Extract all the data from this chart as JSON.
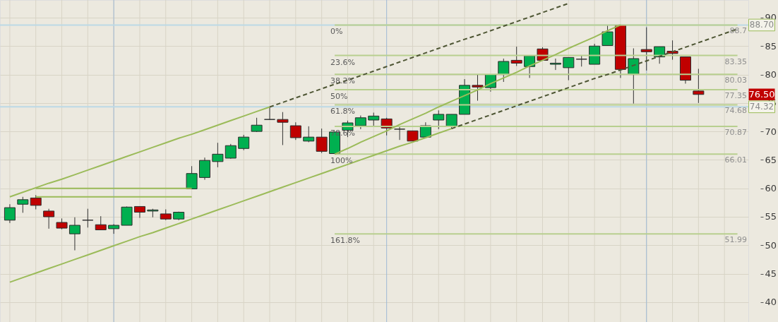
{
  "chart_data": {
    "type": "candlestick",
    "categories": [
      null,
      null,
      null,
      null,
      null,
      null,
      null,
      null,
      null,
      null,
      null,
      null,
      null,
      null,
      null,
      null,
      null,
      null,
      null,
      null,
      null,
      null,
      null,
      null,
      null,
      null,
      null,
      null,
      null,
      null,
      null,
      null,
      null,
      null,
      null,
      null,
      null,
      null,
      null,
      null,
      null,
      null,
      null,
      null,
      null,
      null,
      null,
      null,
      null,
      null,
      null,
      null,
      null,
      null,
      null,
      null,
      null
    ],
    "ohlc": [
      [
        54.4,
        57.2,
        53.9,
        56.6
      ],
      [
        57.2,
        58.5,
        55.7,
        58.0
      ],
      [
        58.3,
        58.8,
        56.3,
        57.0
      ],
      [
        56.0,
        56.4,
        52.9,
        55.0
      ],
      [
        54.0,
        54.7,
        52.8,
        53.0
      ],
      [
        52.0,
        54.9,
        49.1,
        53.5
      ],
      [
        54.4,
        56.4,
        53.1,
        54.4
      ],
      [
        53.6,
        55.1,
        52.7,
        52.7
      ],
      [
        52.9,
        53.7,
        52.0,
        53.5
      ],
      [
        53.5,
        56.8,
        53.5,
        56.7
      ],
      [
        56.8,
        56.8,
        54.8,
        55.8
      ],
      [
        56.0,
        56.4,
        54.9,
        56.2
      ],
      [
        55.5,
        56.3,
        54.4,
        54.6
      ],
      [
        54.6,
        55.9,
        54.4,
        55.8
      ],
      [
        59.9,
        63.9,
        59.9,
        62.6
      ],
      [
        61.9,
        65.4,
        61.5,
        64.9
      ],
      [
        64.7,
        68.0,
        63.7,
        66.0
      ],
      [
        65.3,
        67.8,
        65.2,
        67.5
      ],
      [
        67.0,
        69.4,
        66.7,
        69.0
      ],
      [
        70.0,
        72.4,
        69.9,
        71.1
      ],
      [
        72.1,
        74.3,
        72.1,
        72.1
      ],
      [
        72.1,
        73.4,
        67.6,
        71.6
      ],
      [
        71.0,
        71.6,
        68.5,
        68.9
      ],
      [
        68.3,
        70.9,
        68.1,
        69.0
      ],
      [
        69.0,
        70.5,
        66.2,
        66.5
      ],
      [
        66.1,
        69.9,
        66.1,
        69.9
      ],
      [
        70.2,
        71.9,
        69.0,
        71.5
      ],
      [
        71.0,
        72.8,
        70.4,
        72.4
      ],
      [
        72.0,
        73.3,
        71.0,
        72.7
      ],
      [
        72.2,
        72.4,
        69.3,
        70.6
      ],
      [
        70.4,
        71.0,
        68.5,
        70.4
      ],
      [
        70.1,
        70.1,
        68.3,
        68.3
      ],
      [
        69.0,
        71.6,
        69.0,
        71.0
      ],
      [
        72.0,
        73.7,
        70.4,
        73.0
      ],
      [
        70.9,
        73.0,
        70.4,
        73.0
      ],
      [
        73.0,
        79.2,
        73.0,
        78.1
      ],
      [
        78.1,
        80.0,
        75.4,
        77.8
      ],
      [
        77.7,
        80.0,
        77.0,
        80.0
      ],
      [
        80.0,
        82.8,
        78.7,
        82.3
      ],
      [
        82.5,
        84.9,
        81.5,
        82.0
      ],
      [
        81.4,
        83.3,
        79.4,
        83.3
      ],
      [
        84.5,
        84.8,
        82.5,
        82.5
      ],
      [
        81.8,
        82.8,
        80.8,
        82.0
      ],
      [
        81.2,
        83.0,
        79.0,
        83.0
      ],
      [
        82.7,
        83.4,
        81.4,
        82.7
      ],
      [
        81.8,
        85.4,
        81.8,
        85.0
      ],
      [
        85.1,
        88.6,
        85.1,
        87.5
      ],
      [
        88.7,
        88.7,
        79.4,
        80.9
      ],
      [
        80.0,
        84.6,
        74.9,
        82.8
      ],
      [
        84.4,
        88.3,
        80.7,
        84.0
      ],
      [
        83.1,
        84.9,
        81.9,
        84.9
      ],
      [
        84.1,
        86.0,
        82.6,
        83.7
      ],
      [
        83.1,
        83.1,
        78.4,
        79.0
      ],
      [
        77.1,
        81.0,
        75.0,
        76.5
      ],
      null,
      null,
      null
    ],
    "colors": [
      "#00b050",
      "#00b050",
      "#c00000",
      "#c00000",
      "#c00000",
      "#00b050",
      "#333333",
      "#c00000",
      "#00b050",
      "#00b050",
      "#c00000",
      "#00b050",
      "#c00000",
      "#00b050",
      "#00b050",
      "#00b050",
      "#00b050",
      "#00b050",
      "#00b050",
      "#00b050",
      "#333333",
      "#c00000",
      "#c00000",
      "#00b050",
      "#c00000",
      "#00b050",
      "#00b050",
      "#00b050",
      "#00b050",
      "#c00000",
      "#333333",
      "#c00000",
      "#00b050",
      "#00b050",
      "#00b050",
      "#00b050",
      "#c00000",
      "#00b050",
      "#00b050",
      "#c00000",
      "#00b050",
      "#c00000",
      "#00b050",
      "#00b050",
      "#333333",
      "#00b050",
      "#00b050",
      "#c00000",
      "#00b050",
      "#c00000",
      "#00b050",
      "#c00000",
      "#c00000",
      "#c00000",
      null,
      null,
      null
    ],
    "series": [
      {
        "type": "line",
        "name": "0%",
        "color": "#b8cf8f",
        "values": [
          null,
          null,
          null,
          null,
          null,
          null,
          null,
          null,
          null,
          null,
          null,
          null,
          null,
          null,
          null,
          null,
          null,
          null,
          null,
          null,
          null,
          null,
          null,
          null,
          null,
          88.7,
          88.7,
          88.7,
          88.7,
          88.7,
          88.7,
          88.7,
          88.7,
          88.7,
          88.7,
          88.7,
          88.7,
          88.7,
          88.7,
          88.7,
          88.7,
          88.7,
          88.7,
          88.7,
          88.7,
          88.7,
          88.7,
          88.7,
          88.7,
          88.7,
          88.7,
          88.7,
          88.7,
          88.7,
          88.7,
          88.7,
          88.7
        ]
      },
      {
        "type": "line",
        "name": "23.6%",
        "color": "#b8cf8f",
        "values": [
          null,
          null,
          null,
          null,
          null,
          null,
          null,
          null,
          null,
          null,
          null,
          null,
          null,
          null,
          null,
          null,
          null,
          null,
          null,
          null,
          null,
          null,
          null,
          null,
          null,
          83.35,
          83.35,
          83.35,
          83.35,
          83.35,
          83.35,
          83.35,
          83.35,
          83.35,
          83.35,
          83.35,
          83.35,
          83.35,
          83.35,
          83.35,
          83.35,
          83.35,
          83.35,
          83.35,
          83.35,
          83.35,
          83.35,
          83.35,
          83.35,
          83.35,
          83.35,
          83.35,
          83.35,
          83.35,
          83.35,
          83.35,
          83.35
        ]
      },
      {
        "type": "line",
        "name": "38.2%",
        "color": "#b8cf8f",
        "values": [
          null,
          null,
          null,
          null,
          null,
          null,
          null,
          null,
          null,
          null,
          null,
          null,
          null,
          null,
          null,
          null,
          null,
          null,
          null,
          null,
          null,
          null,
          null,
          null,
          null,
          80.03,
          80.03,
          80.03,
          80.03,
          80.03,
          80.03,
          80.03,
          80.03,
          80.03,
          80.03,
          80.03,
          80.03,
          80.03,
          80.03,
          80.03,
          80.03,
          80.03,
          80.03,
          80.03,
          80.03,
          80.03,
          80.03,
          80.03,
          80.03,
          80.03,
          80.03,
          80.03,
          80.03,
          80.03,
          80.03,
          80.03,
          80.03
        ]
      },
      {
        "type": "line",
        "name": "50%",
        "color": "#b8cf8f",
        "values": [
          null,
          null,
          null,
          null,
          null,
          null,
          null,
          null,
          null,
          null,
          null,
          null,
          null,
          null,
          null,
          null,
          null,
          null,
          null,
          null,
          null,
          null,
          null,
          null,
          null,
          77.35,
          77.35,
          77.35,
          77.35,
          77.35,
          77.35,
          77.35,
          77.35,
          77.35,
          77.35,
          77.35,
          77.35,
          77.35,
          77.35,
          77.35,
          77.35,
          77.35,
          77.35,
          77.35,
          77.35,
          77.35,
          77.35,
          77.35,
          77.35,
          77.35,
          77.35,
          77.35,
          77.35,
          77.35,
          77.35,
          77.35,
          77.35
        ]
      },
      {
        "type": "line",
        "name": "61.8%",
        "color": "#b8cf8f",
        "values": [
          null,
          null,
          null,
          null,
          null,
          null,
          null,
          null,
          null,
          null,
          null,
          null,
          null,
          null,
          null,
          null,
          null,
          null,
          null,
          null,
          null,
          null,
          null,
          null,
          null,
          74.68,
          74.68,
          74.68,
          74.68,
          74.68,
          74.68,
          74.68,
          74.68,
          74.68,
          74.68,
          74.68,
          74.68,
          74.68,
          74.68,
          74.68,
          74.68,
          74.68,
          74.68,
          74.68,
          74.68,
          74.68,
          74.68,
          74.68,
          74.68,
          74.68,
          74.68,
          74.68,
          74.68,
          74.68,
          74.68,
          74.68,
          74.68
        ]
      },
      {
        "type": "line",
        "name": "78.6%",
        "color": "#b8cf8f",
        "values": [
          null,
          null,
          null,
          null,
          null,
          null,
          null,
          null,
          null,
          null,
          null,
          null,
          null,
          null,
          null,
          null,
          null,
          null,
          null,
          null,
          null,
          null,
          null,
          null,
          null,
          70.87,
          70.87,
          70.87,
          70.87,
          70.87,
          70.87,
          70.87,
          70.87,
          70.87,
          70.87,
          70.87,
          70.87,
          70.87,
          70.87,
          70.87,
          70.87,
          70.87,
          70.87,
          70.87,
          70.87,
          70.87,
          70.87,
          70.87,
          70.87,
          70.87,
          70.87,
          70.87,
          70.87,
          70.87,
          70.87,
          70.87,
          70.87
        ]
      },
      {
        "type": "line",
        "name": "100%",
        "color": "#b8cf8f",
        "values": [
          null,
          null,
          null,
          null,
          null,
          null,
          null,
          null,
          null,
          null,
          null,
          null,
          null,
          null,
          null,
          null,
          null,
          null,
          null,
          null,
          null,
          null,
          null,
          null,
          null,
          66.01,
          66.01,
          66.01,
          66.01,
          66.01,
          66.01,
          66.01,
          66.01,
          66.01,
          66.01,
          66.01,
          66.01,
          66.01,
          66.01,
          66.01,
          66.01,
          66.01,
          66.01,
          66.01,
          66.01,
          66.01,
          66.01,
          66.01,
          66.01,
          66.01,
          66.01,
          66.01,
          66.01,
          66.01,
          66.01,
          66.01,
          66.01
        ]
      },
      {
        "type": "line",
        "name": "161.8%",
        "color": "#b8cf8f",
        "values": [
          null,
          null,
          null,
          null,
          null,
          null,
          null,
          null,
          null,
          null,
          null,
          null,
          null,
          null,
          null,
          null,
          null,
          null,
          null,
          null,
          null,
          null,
          null,
          null,
          null,
          51.99,
          51.99,
          51.99,
          51.99,
          51.99,
          51.99,
          51.99,
          51.99,
          51.99,
          51.99,
          51.99,
          51.99,
          51.99,
          51.99,
          51.99,
          51.99,
          51.99,
          51.99,
          51.99,
          51.99,
          51.99,
          51.99,
          51.99,
          51.99,
          51.99,
          51.99,
          51.99,
          51.99,
          51.99,
          51.99,
          51.99,
          51.99
        ]
      },
      {
        "type": "line",
        "color": "#9bbb59",
        "values": [
          58.5,
          59.3,
          60.1,
          60.9,
          61.6,
          62.4,
          63.2,
          64.0,
          64.8,
          65.6,
          66.4,
          67.2,
          68.0,
          68.8,
          69.5,
          70.3,
          71.1,
          71.9,
          72.7,
          73.5,
          74.3,
          null,
          null,
          null,
          null,
          null,
          null,
          null,
          null,
          null,
          null,
          null,
          null,
          null,
          null,
          null,
          null,
          null,
          null,
          null,
          null,
          null,
          null,
          null,
          null,
          null,
          null,
          null,
          null,
          null,
          null,
          null,
          null,
          null,
          null,
          null,
          null
        ]
      },
      {
        "type": "line",
        "color": "#4e5634",
        "line_style": "dashed",
        "values": [
          null,
          null,
          null,
          null,
          null,
          null,
          null,
          null,
          null,
          null,
          null,
          null,
          null,
          null,
          null,
          null,
          null,
          null,
          null,
          null,
          74.3,
          75.1,
          75.9,
          76.7,
          77.5,
          78.3,
          79.0,
          79.8,
          80.6,
          81.4,
          82.2,
          83.0,
          83.8,
          84.6,
          85.4,
          86.2,
          86.9,
          87.7,
          88.5,
          89.3,
          90.1,
          90.9,
          91.7,
          92.5,
          null,
          null,
          null,
          null,
          null,
          null,
          null,
          null,
          null,
          null,
          null,
          null,
          null
        ]
      },
      {
        "type": "line",
        "color": "#9bbb59",
        "values": [
          43.5,
          44.3,
          45.1,
          45.9,
          46.7,
          47.5,
          48.3,
          49.1,
          49.9,
          50.7,
          51.5,
          52.2,
          53.0,
          53.8,
          54.6,
          55.4,
          56.2,
          57.0,
          57.8,
          58.6,
          59.4,
          60.2,
          61.0,
          61.8,
          62.6,
          63.4,
          64.2,
          65.0,
          65.8,
          66.6,
          67.4,
          68.1,
          68.9,
          69.7,
          70.5,
          null,
          null,
          null,
          null,
          null,
          null,
          null,
          null,
          null,
          null,
          null,
          null,
          null,
          null,
          null,
          null,
          null,
          null,
          null,
          null,
          null,
          null
        ]
      },
      {
        "type": "line",
        "color": "#4e5634",
        "line_style": "dashed",
        "values": [
          null,
          null,
          null,
          null,
          null,
          null,
          null,
          null,
          null,
          null,
          null,
          null,
          null,
          null,
          null,
          null,
          null,
          null,
          null,
          null,
          null,
          null,
          null,
          null,
          null,
          null,
          null,
          null,
          null,
          null,
          null,
          null,
          null,
          null,
          70.5,
          71.3,
          72.1,
          72.9,
          73.7,
          74.5,
          75.3,
          76.1,
          76.9,
          77.7,
          78.5,
          79.3,
          80.0,
          80.8,
          81.6,
          82.4,
          83.2,
          84.0,
          84.8,
          85.6,
          86.4,
          87.2,
          88.0
        ]
      },
      {
        "type": "line",
        "color": "#9bbb59",
        "values": [
          null,
          null,
          null,
          null,
          null,
          null,
          null,
          null,
          null,
          null,
          null,
          null,
          null,
          null,
          null,
          null,
          null,
          null,
          null,
          null,
          null,
          null,
          null,
          null,
          null,
          66.0,
          67.0,
          68.1,
          69.1,
          70.1,
          71.2,
          72.2,
          73.2,
          74.3,
          75.3,
          76.3,
          77.3,
          78.4,
          79.4,
          80.4,
          81.5,
          82.5,
          83.5,
          84.6,
          85.6,
          86.6,
          87.7,
          88.7,
          null,
          null,
          null,
          null,
          null,
          null,
          null,
          null,
          null
        ]
      },
      {
        "type": "line",
        "color": "#9bbb59",
        "values": [
          null,
          null,
          60.0,
          60.0,
          60.0,
          60.0,
          60.0,
          60.0,
          60.0,
          60.0,
          60.0,
          60.0,
          60.0,
          60.0,
          60.0,
          null,
          null,
          null,
          null,
          null,
          null,
          null,
          null,
          null,
          null,
          null,
          null,
          null,
          null,
          null,
          null,
          null,
          null,
          null,
          null,
          null,
          null,
          null,
          null,
          null,
          null,
          null,
          null,
          null,
          null,
          null,
          null,
          null,
          null,
          null,
          null,
          null,
          null,
          null,
          null,
          null,
          null
        ]
      },
      {
        "type": "line",
        "color": "#9bbb59",
        "values": [
          null,
          null,
          58.5,
          58.5,
          58.5,
          58.5,
          58.5,
          58.5,
          58.5,
          58.5,
          58.5,
          58.5,
          58.5,
          58.5,
          58.5,
          null,
          null,
          null,
          null,
          null,
          null,
          null,
          null,
          null,
          null,
          null,
          null,
          null,
          null,
          null,
          null,
          null,
          null,
          null,
          null,
          null,
          null,
          null,
          null,
          null,
          null,
          null,
          null,
          null,
          null,
          null,
          null,
          null,
          null,
          null,
          null,
          null,
          null,
          null,
          null,
          null,
          null
        ]
      }
    ],
    "ylim": [
      36.5,
      93.1
    ],
    "yticks": [
      40,
      45,
      50,
      55,
      60,
      65,
      70,
      75,
      80,
      85,
      90
    ],
    "ref_lines": [
      {
        "axis": "y",
        "value": 88.7,
        "label": "88.70",
        "color": "#bcd9e6"
      },
      {
        "axis": "y",
        "value": 74.32,
        "label": "74.32",
        "color": "#bcd9e6"
      }
    ],
    "annotations": [
      {
        "text": "88.7",
        "y": 88.7
      },
      {
        "text": "83.35",
        "y": 83.35
      },
      {
        "text": "80.03",
        "y": 80.03
      },
      {
        "text": "77.35",
        "y": 77.35
      },
      {
        "text": "74.68",
        "y": 74.68
      },
      {
        "text": "70.87",
        "y": 70.87
      },
      {
        "text": "66.01",
        "y": 66.01
      },
      {
        "text": "51.99",
        "y": 51.99
      },
      "76.50"
    ],
    "grid": true,
    "tick_labels": "y"
  }
}
